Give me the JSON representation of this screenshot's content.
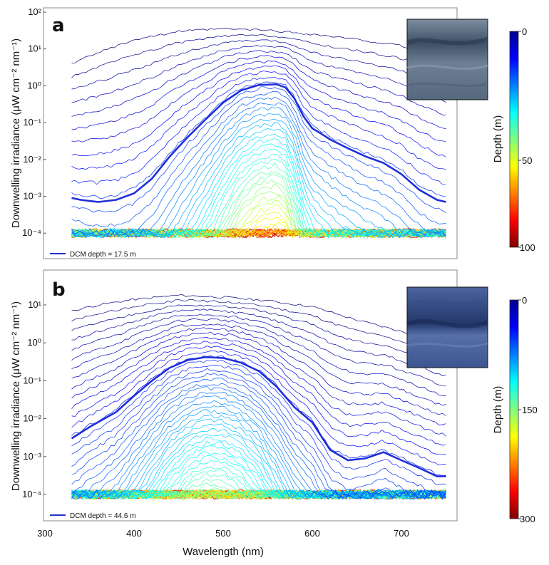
{
  "colors": {
    "dcm_line": "#1f2fd8",
    "frame": "#888888",
    "inset_a": "#5b6f86",
    "inset_b": "#41578f"
  },
  "x_axis": {
    "label": "Wavelength (nm)",
    "ticks": [
      "300",
      "400",
      "500",
      "600",
      "700"
    ]
  },
  "y_axis_label": "Downwelling irradiance (μW cm⁻² nm⁻¹)",
  "colorbar_label": "Depth (m)",
  "chart_data": [
    {
      "type": "line",
      "panel": "a",
      "xlabel": "Wavelength (nm)",
      "ylabel": "Downwelling irradiance (μW cm⁻² nm⁻¹)",
      "xlim": [
        300,
        760
      ],
      "ylim": [
        3e-05,
        100
      ],
      "yscale": "log",
      "y_tick_labels": [
        "10⁻⁴",
        "10⁻³",
        "10⁻²",
        "10⁻¹",
        "10⁰",
        "10¹",
        "10²"
      ],
      "colorbar": {
        "label": "Depth (m)",
        "range": [
          0,
          100
        ],
        "ticks": [
          "0",
          "50",
          "100"
        ],
        "colormap": "jet-reversed"
      },
      "legend": {
        "label": "DCM depth =  17.5  m",
        "position": "bottom-left"
      },
      "dcm_depth_m": 17.5,
      "max_depth_m": 100,
      "num_profiles": 60,
      "has_photo_inset": true,
      "dcm_profile": {
        "x": [
          330,
          340,
          360,
          380,
          400,
          420,
          440,
          460,
          480,
          500,
          520,
          540,
          560,
          570,
          580,
          590,
          600,
          610,
          620,
          640,
          660,
          680,
          700,
          720,
          740,
          750
        ],
        "y": [
          0.0009,
          0.0008,
          0.0007,
          0.0008,
          0.0012,
          0.003,
          0.012,
          0.04,
          0.12,
          0.35,
          0.75,
          1.05,
          1.1,
          0.9,
          0.45,
          0.15,
          0.07,
          0.05,
          0.035,
          0.02,
          0.012,
          0.008,
          0.004,
          0.0015,
          0.0008,
          0.0007
        ]
      },
      "surface_profile": {
        "x": [
          330,
          360,
          400,
          450,
          500,
          550,
          600,
          650,
          700,
          730,
          750
        ],
        "y": [
          4,
          8,
          18,
          30,
          35,
          32,
          25,
          18,
          12,
          8,
          5
        ]
      },
      "noise_floor": 0.0001
    },
    {
      "type": "line",
      "panel": "b",
      "xlabel": "Wavelength (nm)",
      "ylabel": "Downwelling irradiance (μW cm⁻² nm⁻¹)",
      "xlim": [
        300,
        760
      ],
      "ylim": [
        4e-05,
        40
      ],
      "yscale": "log",
      "y_tick_labels": [
        "10⁻⁴",
        "10⁻³",
        "10⁻²",
        "10⁻¹",
        "10⁰",
        "10¹"
      ],
      "colorbar": {
        "label": "Depth (m)",
        "range": [
          0,
          300
        ],
        "ticks": [
          "0",
          "150",
          "300"
        ],
        "colormap": "jet-reversed"
      },
      "legend": {
        "label": "DCM depth =  44.6  m",
        "position": "bottom-left"
      },
      "dcm_depth_m": 44.6,
      "max_depth_m": 300,
      "num_profiles": 90,
      "has_photo_inset": true,
      "dcm_profile": {
        "x": [
          330,
          350,
          380,
          400,
          420,
          440,
          460,
          480,
          500,
          520,
          540,
          560,
          580,
          600,
          620,
          640,
          660,
          680,
          700,
          720,
          740,
          750
        ],
        "y": [
          0.003,
          0.006,
          0.015,
          0.04,
          0.1,
          0.22,
          0.35,
          0.42,
          0.4,
          0.3,
          0.18,
          0.07,
          0.02,
          0.008,
          0.0015,
          0.0008,
          0.0009,
          0.0013,
          0.0008,
          0.0005,
          0.0003,
          0.0003
        ]
      },
      "surface_profile": {
        "x": [
          330,
          360,
          400,
          450,
          500,
          550,
          600,
          650,
          700,
          730,
          750
        ],
        "y": [
          7,
          10,
          14,
          18,
          16,
          13,
          9,
          4,
          2,
          1.2,
          0.8
        ]
      },
      "noise_floor": 0.0001
    }
  ]
}
